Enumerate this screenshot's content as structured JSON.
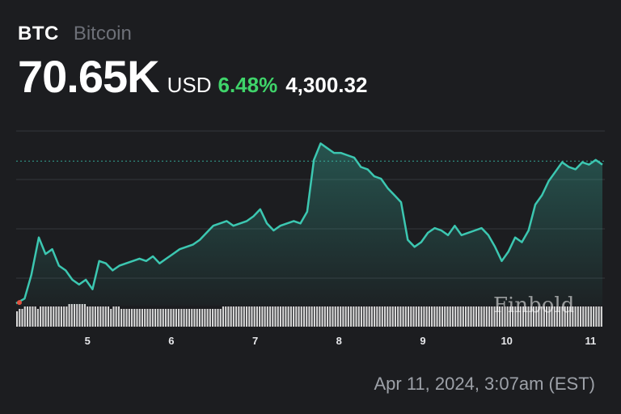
{
  "header": {
    "ticker": "BTC",
    "name": "Bitcoin",
    "price": "70.65K",
    "currency": "USD",
    "change_pct": "6.48%",
    "change_abs": "4,300.32"
  },
  "watermark": "Finbold",
  "timestamp": "Apr 11, 2024, 3:07am (EST)",
  "colors": {
    "background": "#1c1d20",
    "line": "#3cc7b1",
    "positive": "#3fd46a",
    "grid": "#34363b",
    "volume": "#e8e8e8",
    "start_dot": "#e0523f"
  },
  "chart_data": {
    "type": "line",
    "x_tick_labels": [
      "5",
      "6",
      "7",
      "8",
      "9",
      "10",
      "11"
    ],
    "x_range": [
      4.15,
      11.15
    ],
    "y_range": [
      64500,
      72000
    ],
    "grid": true,
    "reference_line": 70650,
    "series": [
      {
        "x": [
          4.15,
          4.25,
          4.33,
          4.42,
          4.5,
          4.58,
          4.66,
          4.74,
          4.82,
          4.9,
          4.98,
          5.06,
          5.14,
          5.22,
          5.3,
          5.38,
          5.46,
          5.54,
          5.62,
          5.7,
          5.78,
          5.86,
          5.94,
          6.02,
          6.1,
          6.18,
          6.26,
          6.34,
          6.42,
          6.5,
          6.58,
          6.66,
          6.74,
          6.82,
          6.9,
          6.98,
          7.06,
          7.14,
          7.22,
          7.3,
          7.38,
          7.46,
          7.54,
          7.62,
          7.7,
          7.78,
          7.86,
          7.94,
          8.02,
          8.1,
          8.18,
          8.26,
          8.34,
          8.42,
          8.5,
          8.58,
          8.66,
          8.74,
          8.82,
          8.9,
          8.98,
          9.06,
          9.14,
          9.22,
          9.3,
          9.38,
          9.46,
          9.54,
          9.62,
          9.7,
          9.78,
          9.86,
          9.94,
          10.02,
          10.1,
          10.18,
          10.26,
          10.34,
          10.42,
          10.5,
          10.58,
          10.66,
          10.74,
          10.82,
          10.9,
          10.98,
          11.06,
          11.14
        ],
        "values": [
          64600,
          64800,
          65800,
          67400,
          66700,
          66900,
          66200,
          66000,
          65600,
          65400,
          65600,
          65200,
          66400,
          66300,
          66000,
          66200,
          66300,
          66400,
          66500,
          66400,
          66600,
          66300,
          66500,
          66700,
          66900,
          67000,
          67100,
          67300,
          67600,
          67900,
          68000,
          68100,
          67900,
          68000,
          68100,
          68300,
          68600,
          68000,
          67700,
          67900,
          68000,
          68100,
          68000,
          68500,
          70700,
          71400,
          71200,
          71000,
          71000,
          70900,
          70800,
          70400,
          70300,
          70000,
          69900,
          69500,
          69200,
          68900,
          67300,
          67000,
          67200,
          67600,
          67800,
          67700,
          67500,
          67900,
          67500,
          67600,
          67700,
          67800,
          67500,
          67000,
          66400,
          66800,
          67400,
          67200,
          67700,
          68800,
          69200,
          69800,
          70200,
          70600,
          70400,
          70300,
          70600,
          70500,
          70700,
          70500
        ]
      }
    ],
    "volume": [
      3,
      4,
      4,
      5,
      5,
      5,
      5,
      5,
      4,
      5,
      5,
      5,
      5,
      5,
      5,
      5,
      5,
      5,
      5,
      5,
      6,
      6,
      6,
      6,
      6,
      6,
      6,
      5,
      5,
      5,
      5,
      5,
      5,
      5,
      5,
      5,
      4,
      5,
      5,
      5,
      4,
      4,
      4,
      4,
      4,
      4,
      4,
      4,
      4,
      4,
      4,
      4,
      4,
      4,
      4,
      4,
      4,
      4,
      4,
      4,
      4,
      4,
      4,
      4,
      4,
      4,
      4,
      4,
      4,
      4,
      4,
      4,
      4,
      4,
      4,
      4,
      4,
      4,
      4,
      5,
      5,
      5,
      5,
      5,
      5,
      5,
      5,
      5,
      5,
      5,
      5,
      5,
      5,
      5,
      5,
      5,
      5,
      5,
      5,
      5,
      5,
      5,
      5,
      5,
      5,
      5,
      5,
      5,
      5,
      5,
      5,
      5,
      5,
      5,
      5,
      5,
      5,
      5,
      5,
      5,
      5,
      5,
      5,
      5,
      5,
      5,
      5,
      5,
      5,
      5,
      5,
      5,
      5,
      5,
      5,
      5,
      5,
      5,
      5,
      5,
      5,
      5,
      5,
      5,
      5,
      5,
      5,
      5,
      5,
      5,
      5,
      5,
      5,
      5,
      5,
      5,
      5,
      5,
      5,
      5,
      5,
      5,
      5,
      5,
      5,
      5,
      5,
      5,
      5,
      5,
      5,
      5,
      5,
      5,
      5,
      5,
      5,
      5,
      5,
      5,
      5,
      5,
      5,
      5,
      5,
      5,
      5,
      5,
      5,
      5,
      5,
      5,
      5,
      5,
      5,
      5,
      5,
      5,
      5,
      5,
      5,
      5,
      5,
      5,
      5,
      5,
      5,
      5,
      5,
      5,
      5,
      5,
      5,
      5,
      5,
      5,
      5,
      5,
      5,
      5,
      5,
      5,
      5,
      5,
      5
    ]
  }
}
